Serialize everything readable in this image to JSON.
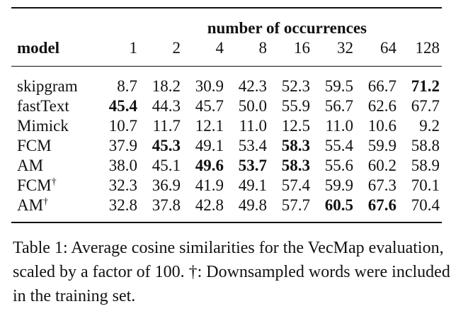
{
  "table": {
    "group_header": "number of occurrences",
    "model_header": "model",
    "columns": [
      "1",
      "2",
      "4",
      "8",
      "16",
      "32",
      "64",
      "128"
    ],
    "rows": [
      {
        "model": "skipgram",
        "sup": "",
        "values": [
          "8.7",
          "18.2",
          "30.9",
          "42.3",
          "52.3",
          "59.5",
          "66.7",
          "71.2"
        ],
        "bold": [
          7
        ]
      },
      {
        "model": "fastText",
        "sup": "",
        "values": [
          "45.4",
          "44.3",
          "45.7",
          "50.0",
          "55.9",
          "56.7",
          "62.6",
          "67.7"
        ],
        "bold": [
          0
        ]
      },
      {
        "model": "Mimick",
        "sup": "",
        "values": [
          "10.7",
          "11.7",
          "12.1",
          "11.0",
          "12.5",
          "11.0",
          "10.6",
          "9.2"
        ],
        "bold": []
      },
      {
        "model": "FCM",
        "sup": "",
        "values": [
          "37.9",
          "45.3",
          "49.1",
          "53.4",
          "58.3",
          "55.4",
          "59.9",
          "58.8"
        ],
        "bold": [
          1,
          4
        ]
      },
      {
        "model": "AM",
        "sup": "",
        "values": [
          "38.0",
          "45.1",
          "49.6",
          "53.7",
          "58.3",
          "55.6",
          "60.2",
          "58.9"
        ],
        "bold": [
          2,
          3,
          4
        ]
      },
      {
        "model": "FCM",
        "sup": "†",
        "values": [
          "32.3",
          "36.9",
          "41.9",
          "49.1",
          "57.4",
          "59.9",
          "67.3",
          "70.1"
        ],
        "bold": []
      },
      {
        "model": "AM",
        "sup": "†",
        "values": [
          "32.8",
          "37.8",
          "42.8",
          "49.8",
          "57.7",
          "60.5",
          "67.6",
          "70.4"
        ],
        "bold": [
          5,
          6
        ]
      }
    ]
  },
  "caption": "Table 1:  Average cosine similarities for the VecMap evaluation, scaled by a factor of 100. †: Downsampled words were included in the training set."
}
